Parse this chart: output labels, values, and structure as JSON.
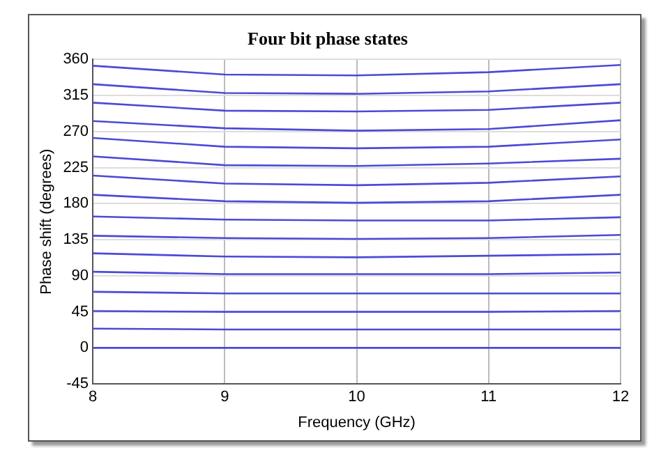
{
  "chart_data": {
    "type": "line",
    "title": "Four bit phase states",
    "xlabel": "Frequency (GHz)",
    "ylabel": "Phase shift (degrees)",
    "x": [
      8,
      9,
      10,
      11,
      12
    ],
    "xlim": [
      8,
      12
    ],
    "xticks": [
      8,
      9,
      10,
      11,
      12
    ],
    "ylim": [
      -45,
      360
    ],
    "yticks": [
      -45,
      0,
      45,
      90,
      135,
      180,
      225,
      270,
      315,
      360
    ],
    "grid": true,
    "legend": false,
    "marker": "none",
    "line_style": "solid",
    "series": [
      {
        "color": "#4a4ad8",
        "values": [
          352,
          341,
          340,
          344,
          353
        ]
      },
      {
        "color": "#4a4ad8",
        "values": [
          329,
          318,
          317,
          320,
          329
        ]
      },
      {
        "color": "#4a4ad8",
        "values": [
          306,
          296,
          295,
          297,
          306
        ]
      },
      {
        "color": "#4a4ad8",
        "values": [
          283,
          274,
          271,
          273,
          284
        ]
      },
      {
        "color": "#4a4ad8",
        "values": [
          262,
          251,
          249,
          251,
          260
        ]
      },
      {
        "color": "#4a4ad8",
        "values": [
          239,
          228,
          227,
          230,
          236
        ]
      },
      {
        "color": "#4a4ad8",
        "values": [
          215,
          205,
          203,
          206,
          214
        ]
      },
      {
        "color": "#4a4ad8",
        "values": [
          191,
          183,
          181,
          183,
          191
        ]
      },
      {
        "color": "#4a4ad8",
        "values": [
          164,
          160,
          159,
          159,
          163
        ]
      },
      {
        "color": "#4a4ad8",
        "values": [
          140,
          137,
          136,
          137,
          141
        ]
      },
      {
        "color": "#4a4ad8",
        "values": [
          118,
          114,
          113,
          115,
          117
        ]
      },
      {
        "color": "#4a4ad8",
        "values": [
          95,
          92,
          92,
          92,
          94
        ]
      },
      {
        "color": "#4a4ad8",
        "values": [
          70,
          68,
          68,
          68,
          68
        ]
      },
      {
        "color": "#4a4ad8",
        "values": [
          46,
          45,
          45,
          45,
          46
        ]
      },
      {
        "color": "#4a4ad8",
        "values": [
          24,
          23,
          23,
          23,
          23
        ]
      },
      {
        "color": "#4a4ad8",
        "values": [
          0,
          0,
          0,
          0,
          0
        ]
      }
    ]
  }
}
